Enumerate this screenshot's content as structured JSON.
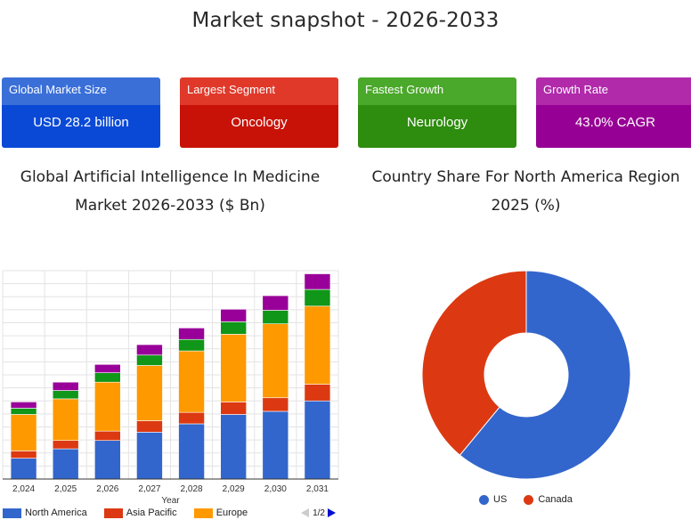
{
  "page": {
    "title": "Market snapshot - 2026-2033"
  },
  "cards": [
    {
      "header": "Global Market Size",
      "value": "USD 28.2 billion",
      "header_color": "#3a6fd8",
      "body_color": "#0a49d6"
    },
    {
      "header": "Largest Segment",
      "value": "Oncology",
      "header_color": "#e0392a",
      "body_color": "#c81208"
    },
    {
      "header": "Fastest Growth",
      "value": "Neurology",
      "header_color": "#4aa82a",
      "body_color": "#2e8c0e"
    },
    {
      "header": "Growth Rate",
      "value": "43.0% CAGR",
      "header_color": "#b02aaa",
      "body_color": "#970094"
    }
  ],
  "bar_title": {
    "line1": "Global Artificial Intelligence In Medicine",
    "line2": "Market 2026-2033 ($ Bn)"
  },
  "pie_title": {
    "line1": "Country Share For North America Region",
    "line2": "2025 (%)"
  },
  "legend": {
    "pager": "1/2"
  },
  "chart_data": [
    {
      "type": "bar",
      "stacked": true,
      "categories": [
        "2,024",
        "2,025",
        "2,026",
        "2,027",
        "2,028",
        "2,029",
        "2,030",
        "2,031"
      ],
      "xlabel": "Year",
      "ylabel": "",
      "grid": true,
      "legend_position": "bottom",
      "series": [
        {
          "name": "North America",
          "color": "#3366cc",
          "values": [
            20,
            29,
            37,
            45,
            53,
            62,
            65,
            75
          ]
        },
        {
          "name": "Asia Pacific",
          "color": "#dc3912",
          "values": [
            7,
            8,
            9,
            11,
            11,
            12,
            13,
            16
          ]
        },
        {
          "name": "Europe",
          "color": "#ff9900",
          "values": [
            35,
            40,
            47,
            53,
            59,
            65,
            71,
            75
          ]
        },
        {
          "name": "",
          "color": "#109618",
          "values": [
            6,
            8,
            9,
            10,
            11,
            12,
            13,
            16
          ]
        },
        {
          "name": "",
          "color": "#990099",
          "values": [
            6,
            8,
            8,
            10,
            11,
            12,
            14,
            15
          ]
        }
      ]
    },
    {
      "type": "pie",
      "donut": true,
      "labels": [
        "US",
        "Canada"
      ],
      "values": [
        61,
        39
      ],
      "colors": [
        "#3366cc",
        "#dc3912"
      ],
      "legend_position": "bottom"
    }
  ]
}
